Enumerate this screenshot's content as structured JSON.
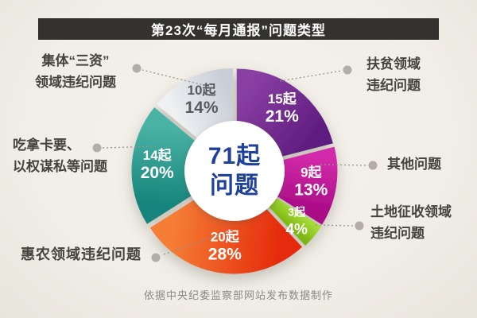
{
  "header": {
    "title": "第23次“每月通报”问题类型"
  },
  "center": {
    "line1": "71起",
    "line2": "问题"
  },
  "footer": {
    "credit": "依据中央纪委监察部网站发布数据制作"
  },
  "callouts": {
    "left_top": {
      "lines": [
        "集体“三资”",
        "领域违纪问题"
      ]
    },
    "left_mid": {
      "lines": [
        "吃拿卡要、",
        "以权谋私等问题"
      ]
    },
    "left_bottom": {
      "lines": [
        "惠农领域违纪问题"
      ]
    },
    "right_top": {
      "lines": [
        "扶贫领域",
        "违纪问题"
      ]
    },
    "right_mid": {
      "lines": [
        "其他问题"
      ]
    },
    "right_bottom": {
      "lines": [
        "土地征收领域",
        "违纪问题"
      ]
    }
  },
  "colors": {
    "background": "#f1eee7",
    "title_bar": "#34322e",
    "center_text": "#20419b",
    "callout_text": "#45433c",
    "connector": "#97938b",
    "connector_dot": "#b2aea7"
  },
  "chart_data": {
    "type": "pie",
    "title": "第23次“每月通报”问题类型",
    "center_label": "71起问题",
    "total_count": 71,
    "unit": "起",
    "legend_position": "callouts-around-pie",
    "segments": [
      {
        "label": "扶贫领域违纪问题",
        "count": 15,
        "count_label": "15起",
        "pct": 21,
        "pct_label": "21%",
        "c1": "#8a3fa3",
        "c2": "#5f1d80",
        "text_color": "#ffffff"
      },
      {
        "label": "其他问题",
        "count": 9,
        "count_label": "9起",
        "pct": 13,
        "pct_label": "13%",
        "c1": "#d32bab",
        "c2": "#a90c86",
        "text_color": "#ffffff"
      },
      {
        "label": "土地征收领域违纪问题",
        "count": 3,
        "count_label": "3起",
        "pct": 4,
        "pct_label": "4%",
        "c1": "#a4db38",
        "c2": "#7cb513",
        "text_color": "#ffffff"
      },
      {
        "label": "惠农领域违纪问题",
        "count": 20,
        "count_label": "20起",
        "pct": 28,
        "pct_label": "28%",
        "c1": "#e52c0c",
        "c2": "#f57d35",
        "text_color": "#ffffff"
      },
      {
        "label": "吃拿卡要、以权谋私等问题",
        "count": 14,
        "count_label": "14起",
        "pct": 20,
        "pct_label": "20%",
        "c1": "#15837b",
        "c2": "#4ab3a5",
        "text_color": "#ffffff"
      },
      {
        "label": "集体“三资”领域违纪问题",
        "count": 10,
        "count_label": "10起",
        "pct": 14,
        "pct_label": "14%",
        "c1": "#eef0f2",
        "c2": "#c9ced7",
        "text_color": "#595a5e"
      }
    ]
  }
}
